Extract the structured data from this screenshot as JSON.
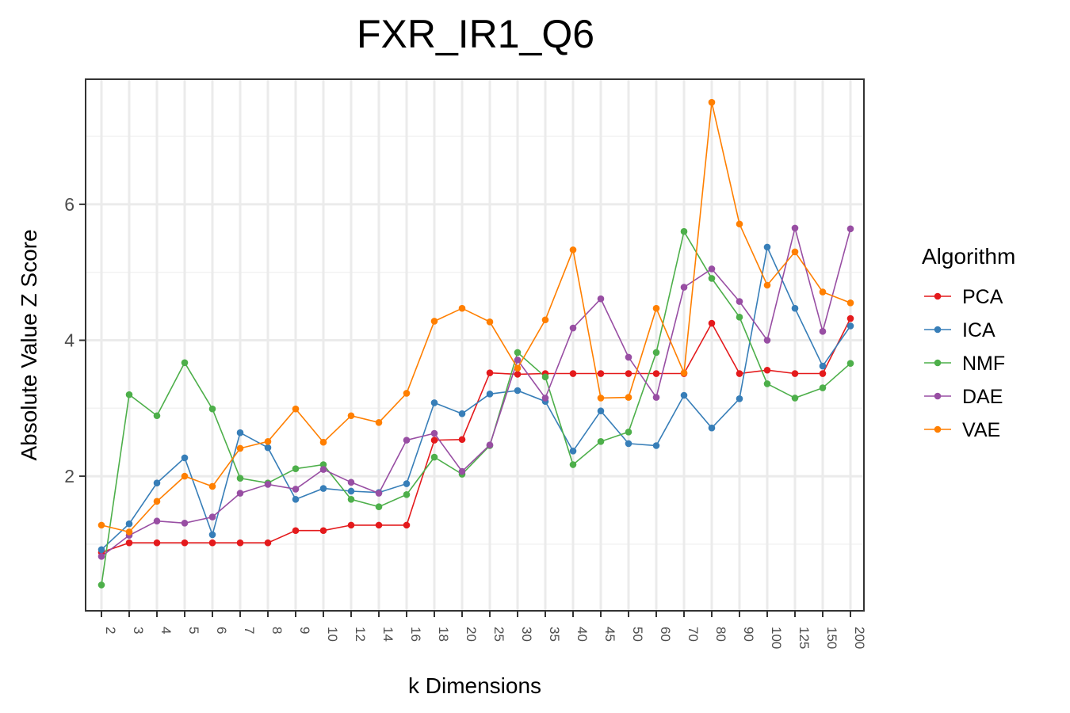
{
  "chart_data": {
    "type": "line",
    "title": "FXR_IR1_Q6",
    "xlabel": "k Dimensions",
    "ylabel": "Absolute Value Z Score",
    "x": [
      "2",
      "3",
      "4",
      "5",
      "6",
      "7",
      "8",
      "9",
      "10",
      "12",
      "14",
      "16",
      "18",
      "20",
      "25",
      "30",
      "35",
      "40",
      "45",
      "50",
      "60",
      "70",
      "80",
      "90",
      "100",
      "125",
      "150",
      "200"
    ],
    "y_ticks": [
      2,
      4,
      6
    ],
    "ylim": [
      0.02,
      7.84
    ],
    "grid": true,
    "legend_title": "Algorithm",
    "legend_position": "right",
    "series": [
      {
        "name": "PCA",
        "color": "#e41a1c",
        "values": [
          0.88,
          1.02,
          1.02,
          1.02,
          1.02,
          1.02,
          1.02,
          1.2,
          1.2,
          1.28,
          1.28,
          1.28,
          2.53,
          2.54,
          3.52,
          3.5,
          3.51,
          3.51,
          3.51,
          3.51,
          3.51,
          3.51,
          4.25,
          3.51,
          3.56,
          3.51,
          3.51,
          4.32
        ]
      },
      {
        "name": "ICA",
        "color": "#377eb8",
        "values": [
          0.92,
          1.3,
          1.9,
          2.27,
          1.14,
          2.64,
          2.42,
          1.66,
          1.82,
          1.78,
          1.76,
          1.89,
          3.08,
          2.92,
          3.21,
          3.26,
          3.1,
          2.37,
          2.96,
          2.48,
          2.45,
          3.19,
          2.71,
          3.14,
          5.37,
          4.47,
          3.62,
          4.21
        ]
      },
      {
        "name": "NMF",
        "color": "#4daf4a",
        "values": [
          0.4,
          3.2,
          2.89,
          3.67,
          2.99,
          1.97,
          1.9,
          2.11,
          2.17,
          1.66,
          1.55,
          1.73,
          2.28,
          2.03,
          2.45,
          3.82,
          3.46,
          2.17,
          2.51,
          2.65,
          3.82,
          5.6,
          4.91,
          4.34,
          3.36,
          3.15,
          3.3,
          3.66
        ]
      },
      {
        "name": "DAE",
        "color": "#984ea3",
        "values": [
          0.82,
          1.13,
          1.34,
          1.31,
          1.4,
          1.75,
          1.88,
          1.81,
          2.1,
          1.91,
          1.75,
          2.53,
          2.63,
          2.07,
          2.46,
          3.71,
          3.15,
          4.18,
          4.61,
          3.75,
          3.16,
          4.78,
          5.05,
          4.57,
          4.0,
          5.65,
          4.13,
          5.64
        ]
      },
      {
        "name": "VAE",
        "color": "#ff7f00",
        "values": [
          1.28,
          1.18,
          1.63,
          2.0,
          1.85,
          2.41,
          2.51,
          2.99,
          2.5,
          2.89,
          2.79,
          3.22,
          4.28,
          4.47,
          4.27,
          3.59,
          4.3,
          5.33,
          3.15,
          3.16,
          4.47,
          3.52,
          7.5,
          5.71,
          4.81,
          5.3,
          4.71,
          4.55
        ]
      }
    ]
  }
}
